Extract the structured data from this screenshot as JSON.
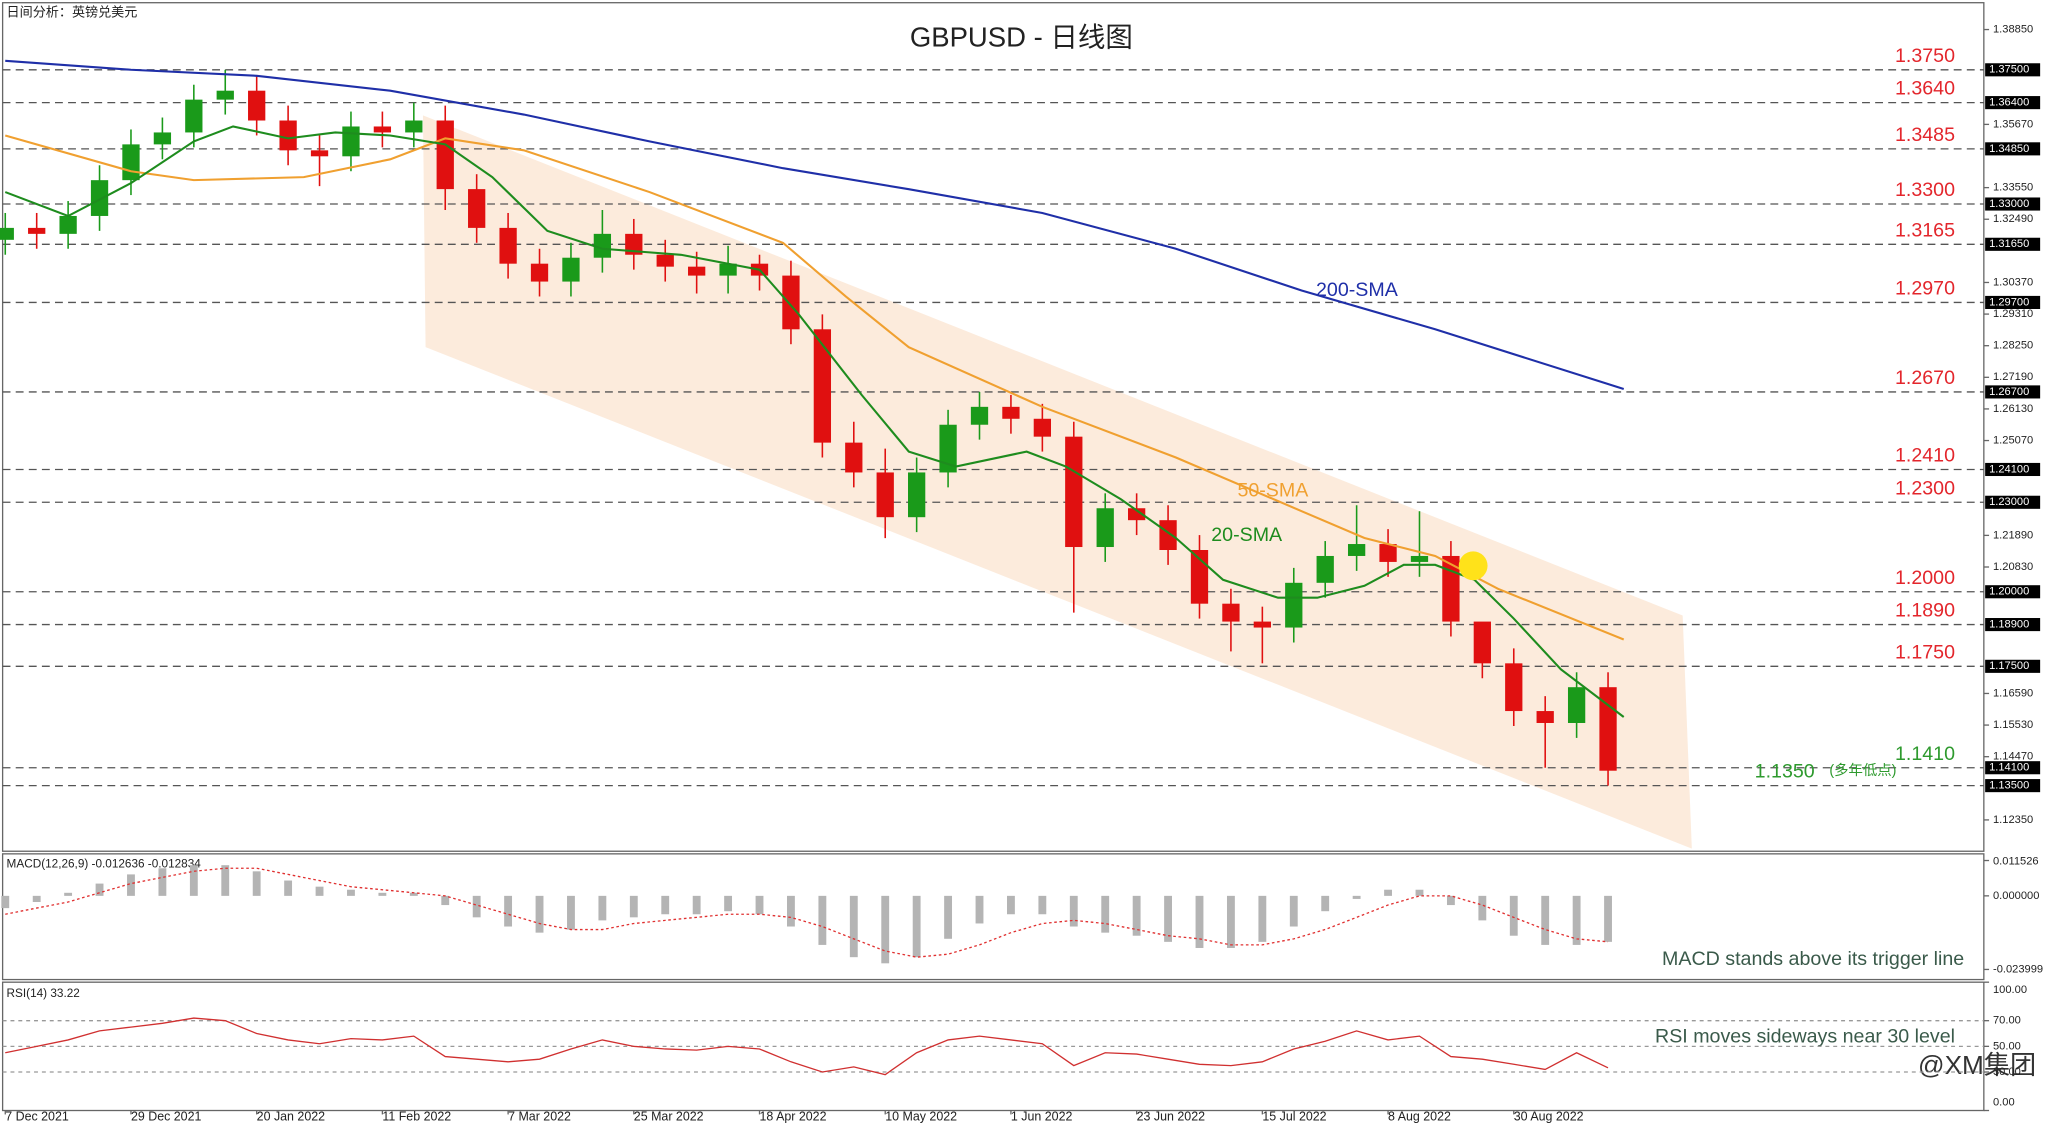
{
  "chart_data": [
    {
      "type": "candlestick",
      "title": "GBPUSD - 日线图",
      "subtitle": "日间分析：英镑兑美元",
      "watermark": "@XM集团",
      "up_color": "#1a9a1a",
      "down_color": "#e01010",
      "x": [
        0,
        4,
        8,
        12,
        16,
        20,
        24,
        28,
        32,
        36,
        40,
        44,
        48,
        52,
        56,
        60,
        64,
        68,
        72,
        76,
        80,
        84,
        88,
        92,
        96,
        100,
        104,
        108,
        112,
        116,
        120,
        124,
        128,
        132,
        136,
        140,
        144,
        148,
        152,
        156,
        160,
        164,
        168,
        172,
        176,
        180,
        184,
        188,
        192,
        196,
        200,
        204
      ],
      "open": [
        1.318,
        1.322,
        1.32,
        1.326,
        1.338,
        1.35,
        1.354,
        1.365,
        1.368,
        1.358,
        1.348,
        1.346,
        1.356,
        1.354,
        1.358,
        1.335,
        1.322,
        1.31,
        1.304,
        1.312,
        1.32,
        1.313,
        1.309,
        1.306,
        1.31,
        1.306,
        1.288,
        1.25,
        1.24,
        1.225,
        1.24,
        1.256,
        1.262,
        1.258,
        1.252,
        1.215,
        1.228,
        1.224,
        1.214,
        1.196,
        1.19,
        1.188,
        1.203,
        1.212,
        1.216,
        1.21,
        1.212,
        1.19,
        1.176,
        1.16,
        1.156,
        1.168
      ],
      "high": [
        1.327,
        1.327,
        1.331,
        1.343,
        1.355,
        1.359,
        1.37,
        1.375,
        1.373,
        1.363,
        1.353,
        1.361,
        1.361,
        1.364,
        1.363,
        1.34,
        1.327,
        1.315,
        1.317,
        1.328,
        1.325,
        1.318,
        1.314,
        1.316,
        1.313,
        1.311,
        1.293,
        1.257,
        1.248,
        1.245,
        1.261,
        1.267,
        1.266,
        1.263,
        1.257,
        1.233,
        1.233,
        1.229,
        1.219,
        1.201,
        1.195,
        1.208,
        1.217,
        1.229,
        1.221,
        1.227,
        1.217,
        1.189,
        1.181,
        1.165,
        1.173,
        1.173
      ],
      "low": [
        1.313,
        1.315,
        1.315,
        1.321,
        1.333,
        1.345,
        1.349,
        1.36,
        1.353,
        1.343,
        1.336,
        1.341,
        1.349,
        1.349,
        1.328,
        1.317,
        1.305,
        1.299,
        1.299,
        1.307,
        1.308,
        1.304,
        1.3,
        1.3,
        1.301,
        1.283,
        1.245,
        1.235,
        1.218,
        1.22,
        1.235,
        1.251,
        1.253,
        1.247,
        1.193,
        1.21,
        1.219,
        1.209,
        1.191,
        1.18,
        1.176,
        1.183,
        1.198,
        1.207,
        1.205,
        1.205,
        1.185,
        1.171,
        1.155,
        1.141,
        1.151,
        1.135
      ],
      "close": [
        1.322,
        1.32,
        1.326,
        1.338,
        1.35,
        1.354,
        1.365,
        1.368,
        1.358,
        1.348,
        1.346,
        1.356,
        1.354,
        1.358,
        1.335,
        1.322,
        1.31,
        1.304,
        1.312,
        1.32,
        1.313,
        1.309,
        1.306,
        1.31,
        1.306,
        1.288,
        1.25,
        1.24,
        1.225,
        1.24,
        1.256,
        1.262,
        1.258,
        1.252,
        1.215,
        1.228,
        1.224,
        1.214,
        1.196,
        1.19,
        1.188,
        1.203,
        1.212,
        1.216,
        1.21,
        1.212,
        1.19,
        1.176,
        1.16,
        1.156,
        1.168,
        1.14
      ],
      "series": [
        {
          "name": "200-SMA",
          "color": "#1f2fa8",
          "x": [
            0,
            16,
            32,
            49,
            66,
            82,
            99,
            115,
            132,
            149,
            165,
            182,
            206
          ],
          "values": [
            1.378,
            1.375,
            1.373,
            1.368,
            1.36,
            1.351,
            1.342,
            1.335,
            1.327,
            1.315,
            1.301,
            1.288,
            1.268
          ]
        },
        {
          "name": "50-SMA",
          "color": "#f0a030",
          "x": [
            0,
            16,
            24,
            38,
            49,
            56,
            66,
            82,
            99,
            107,
            115,
            132,
            149,
            165,
            173,
            182,
            190,
            206
          ],
          "values": [
            1.353,
            1.341,
            1.338,
            1.339,
            1.345,
            1.352,
            1.348,
            1.334,
            1.317,
            1.299,
            1.282,
            1.262,
            1.245,
            1.227,
            1.218,
            1.212,
            1.201,
            1.184
          ]
        },
        {
          "name": "20-SMA",
          "color": "#1e8c1e",
          "x": [
            0,
            8,
            16,
            24,
            29,
            36,
            42,
            49,
            56,
            62,
            69,
            76,
            86,
            96,
            101,
            109,
            115,
            121,
            130,
            135,
            142,
            149,
            155,
            162,
            167,
            173,
            178,
            182,
            187,
            192,
            198,
            206
          ],
          "values": [
            1.334,
            1.326,
            1.337,
            1.351,
            1.356,
            1.352,
            1.354,
            1.353,
            1.35,
            1.339,
            1.321,
            1.315,
            1.313,
            1.308,
            1.293,
            1.266,
            1.247,
            1.242,
            1.247,
            1.242,
            1.231,
            1.218,
            1.204,
            1.198,
            1.198,
            1.202,
            1.209,
            1.209,
            1.204,
            1.191,
            1.174,
            1.158
          ]
        }
      ],
      "xlim": [
        -0.67,
        251.83
      ],
      "xticks": [
        {
          "value": 0,
          "label": "7 Dec 2021"
        },
        {
          "value": 16,
          "label": "29 Dec 2021"
        },
        {
          "value": 32,
          "label": "20 Jan 2022"
        },
        {
          "value": 48,
          "label": "11 Feb 2022"
        },
        {
          "value": 64,
          "label": "7 Mar 2022"
        },
        {
          "value": 80,
          "label": "25 Mar 2022"
        },
        {
          "value": 96,
          "label": "18 Apr 2022"
        },
        {
          "value": 112,
          "label": "10 May 2022"
        },
        {
          "value": 128,
          "label": "1 Jun 2022"
        },
        {
          "value": 144,
          "label": "23 Jun 2022"
        },
        {
          "value": 160,
          "label": "15 Jul 2022"
        },
        {
          "value": 176,
          "label": "8 Aug 2022"
        },
        {
          "value": 192,
          "label": "30 Aug 2022"
        }
      ],
      "ylim": [
        1.113,
        1.3975
      ],
      "yticks": [
        {
          "value": 1.3885,
          "label": "1.38850"
        },
        {
          "value": 1.3567,
          "label": "1.35670"
        },
        {
          "value": 1.3355,
          "label": "1.33550"
        },
        {
          "value": 1.3249,
          "label": "1.32490"
        },
        {
          "value": 1.3037,
          "label": "1.30370"
        },
        {
          "value": 1.2931,
          "label": "1.29310"
        },
        {
          "value": 1.2825,
          "label": "1.28250"
        },
        {
          "value": 1.2719,
          "label": "1.27190"
        },
        {
          "value": 1.2613,
          "label": "1.26130"
        },
        {
          "value": 1.2507,
          "label": "1.25070"
        },
        {
          "value": 1.2189,
          "label": "1.21890"
        },
        {
          "value": 1.2083,
          "label": "1.20830"
        },
        {
          "value": 1.1659,
          "label": "1.16590"
        },
        {
          "value": 1.1553,
          "label": "1.15530"
        },
        {
          "value": 1.1447,
          "label": "1.14470"
        },
        {
          "value": 1.1235,
          "label": "1.12350"
        }
      ],
      "levels": [
        {
          "value": 1.375,
          "label": "1.3750",
          "axis_label": "1.37500",
          "color": "#e3262c"
        },
        {
          "value": 1.364,
          "label": "1.3640",
          "axis_label": "1.36400",
          "color": "#e3262c"
        },
        {
          "value": 1.3485,
          "label": "1.3485",
          "axis_label": "1.34850",
          "color": "#e3262c"
        },
        {
          "value": 1.33,
          "label": "1.3300",
          "axis_label": "1.33000",
          "color": "#e3262c"
        },
        {
          "value": 1.3165,
          "label": "1.3165",
          "axis_label": "1.31650",
          "color": "#e3262c"
        },
        {
          "value": 1.297,
          "label": "1.2970",
          "axis_label": "1.29700",
          "color": "#e3262c"
        },
        {
          "value": 1.267,
          "label": "1.2670",
          "axis_label": "1.26700",
          "color": "#e3262c"
        },
        {
          "value": 1.241,
          "label": "1.2410",
          "axis_label": "1.24100",
          "color": "#e3262c"
        },
        {
          "value": 1.23,
          "label": "1.2300",
          "axis_label": "1.23000",
          "color": "#e3262c"
        },
        {
          "value": 1.2,
          "label": "1.2000",
          "axis_label": "1.20000",
          "color": "#e3262c"
        },
        {
          "value": 1.189,
          "label": "1.1890",
          "axis_label": "1.18900",
          "color": "#e3262c"
        },
        {
          "value": 1.175,
          "label": "1.1750",
          "axis_label": "1.17500",
          "color": "#e3262c"
        },
        {
          "value": 1.141,
          "label": "1.1410",
          "axis_label": "1.14100",
          "color": "#2e9a2e"
        },
        {
          "value": 1.135,
          "label": "1.1350",
          "note": "(多年低点)",
          "axis_label": "1.13500",
          "color": "#2e9a2e"
        }
      ]
    },
    {
      "type": "macd",
      "title": "MACD(12,26,9) -0.012636 -0.012834",
      "note": "MACD stands above its trigger line",
      "x": [
        0,
        4,
        8,
        12,
        16,
        20,
        24,
        28,
        32,
        36,
        40,
        44,
        48,
        52,
        56,
        60,
        64,
        68,
        72,
        76,
        80,
        84,
        88,
        92,
        96,
        100,
        104,
        108,
        112,
        116,
        120,
        124,
        128,
        132,
        136,
        140,
        144,
        148,
        152,
        156,
        160,
        164,
        168,
        172,
        176,
        180,
        184,
        188,
        192,
        196,
        200,
        204
      ],
      "series": [
        {
          "color": "#b4b4b4",
          "values": [
            -0.004,
            -0.002,
            0.001,
            0.004,
            0.007,
            0.009,
            0.01,
            0.01,
            0.008,
            0.005,
            0.003,
            0.002,
            0.001,
            0.001,
            -0.003,
            -0.007,
            -0.01,
            -0.012,
            -0.011,
            -0.008,
            -0.007,
            -0.006,
            -0.006,
            -0.005,
            -0.006,
            -0.01,
            -0.016,
            -0.02,
            -0.022,
            -0.02,
            -0.014,
            -0.009,
            -0.006,
            -0.006,
            -0.01,
            -0.012,
            -0.013,
            -0.015,
            -0.017,
            -0.017,
            -0.015,
            -0.01,
            -0.005,
            -0.001,
            0.002,
            0.002,
            -0.003,
            -0.008,
            -0.013,
            -0.016,
            -0.016,
            -0.015
          ]
        },
        {
          "color": "#e03030",
          "values": [
            -0.006,
            -0.004,
            -0.002,
            0.001,
            0.004,
            0.006,
            0.008,
            0.009,
            0.009,
            0.007,
            0.005,
            0.003,
            0.002,
            0.001,
            0.0,
            -0.003,
            -0.006,
            -0.009,
            -0.011,
            -0.011,
            -0.009,
            -0.008,
            -0.007,
            -0.006,
            -0.006,
            -0.007,
            -0.01,
            -0.014,
            -0.018,
            -0.02,
            -0.019,
            -0.016,
            -0.012,
            -0.009,
            -0.008,
            -0.009,
            -0.011,
            -0.013,
            -0.014,
            -0.016,
            -0.016,
            -0.014,
            -0.011,
            -0.007,
            -0.003,
            0.0,
            0.0,
            -0.003,
            -0.007,
            -0.011,
            -0.014,
            -0.015
          ]
        }
      ],
      "ylim": [
        -0.0273,
        0.0137
      ],
      "yticks": [
        0.011526,
        {
          "value": 0,
          "label": "0.000000"
        },
        -0.023999
      ]
    },
    {
      "type": "line",
      "title": "RSI(14) 33.22",
      "note": "RSI moves sideways near 30 level",
      "x": [
        0,
        4,
        8,
        12,
        16,
        20,
        24,
        28,
        32,
        36,
        40,
        44,
        48,
        52,
        56,
        60,
        64,
        68,
        72,
        76,
        80,
        84,
        88,
        92,
        96,
        100,
        104,
        108,
        112,
        116,
        120,
        124,
        128,
        132,
        136,
        140,
        144,
        148,
        152,
        156,
        160,
        164,
        168,
        172,
        176,
        180,
        184,
        188,
        192,
        196,
        200,
        204
      ],
      "series": [
        {
          "color": "#d03030",
          "values": [
            45,
            50,
            55,
            62,
            65,
            68,
            72,
            70,
            60,
            55,
            52,
            56,
            55,
            58,
            42,
            40,
            38,
            40,
            48,
            55,
            50,
            48,
            47,
            50,
            48,
            38,
            30,
            34,
            28,
            45,
            55,
            58,
            55,
            52,
            35,
            45,
            44,
            40,
            36,
            35,
            38,
            48,
            54,
            62,
            55,
            58,
            42,
            40,
            36,
            32,
            45,
            33.22
          ]
        }
      ],
      "ylim": [
        0,
        100
      ],
      "yticks": [
        {
          "value": 100,
          "label": "100.00"
        },
        {
          "value": 70,
          "label": "70.00"
        },
        {
          "value": 50,
          "label": "50.00"
        },
        {
          "value": 30,
          "label": "30.00"
        },
        {
          "value": 0,
          "label": "0.00"
        }
      ]
    }
  ]
}
